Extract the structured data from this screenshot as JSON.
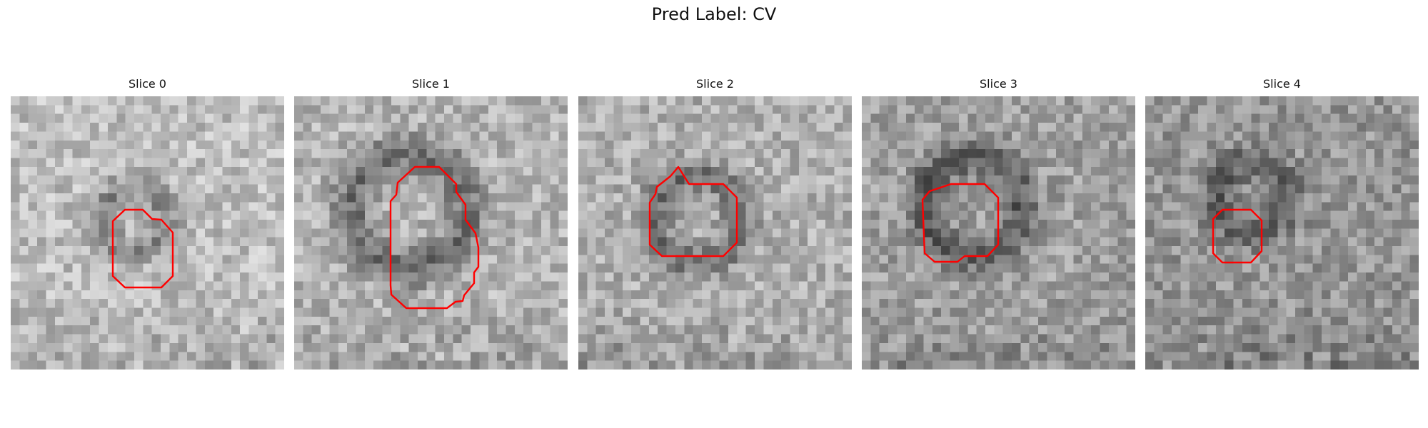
{
  "figure": {
    "title": "Pred Label: CV",
    "contour_color": "#ff0000"
  },
  "slices": [
    {
      "label": "Slice 0"
    },
    {
      "label": "Slice 1"
    },
    {
      "label": "Slice 2"
    },
    {
      "label": "Slice 3"
    },
    {
      "label": "Slice 4"
    }
  ]
}
